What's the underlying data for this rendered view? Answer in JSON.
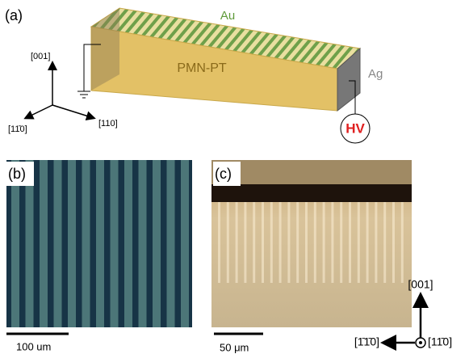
{
  "panel_a": {
    "label": "(a)",
    "electrode_top": "Au",
    "crystal": "PMN-PT",
    "electrode_side": "Ag",
    "source": "HV",
    "axes": {
      "z": "[001]",
      "x": "[11̄0]",
      "y": "[110]"
    }
  },
  "panel_b": {
    "label": "(b)",
    "scale_bar": "100 um"
  },
  "panel_c": {
    "label": "(c)",
    "scale_bar": "50 μm",
    "axes": {
      "up": "[001]",
      "left": "[1̄1̄0]",
      "out": "[11̄0]"
    }
  }
}
